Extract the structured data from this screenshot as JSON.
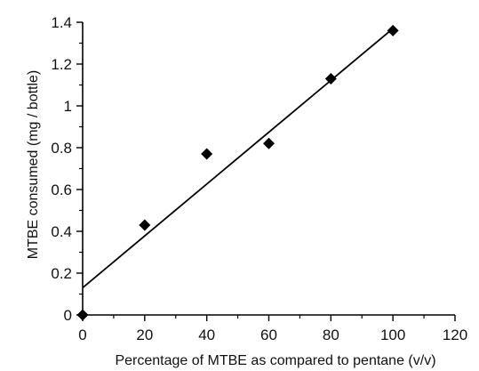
{
  "chart_data": {
    "type": "scatter",
    "xlabel": "Percentage of MTBE as compared to pentane (v/v)",
    "ylabel": "MTBE consumed (mg / bottle)",
    "xlim": [
      0,
      120
    ],
    "ylim": [
      0,
      1.4
    ],
    "x_ticks": [
      0,
      20,
      40,
      60,
      80,
      100,
      120
    ],
    "y_ticks": [
      0,
      0.2,
      0.4,
      0.6,
      0.8,
      1,
      1.2,
      1.4
    ],
    "y_tick_labels": [
      "0",
      "0.2",
      "0.4",
      "0.6",
      "0.8",
      "1",
      "1.2",
      "1.4"
    ],
    "grid": false,
    "legend": "none",
    "marker": "diamond",
    "points": [
      {
        "x": 0,
        "y": 0
      },
      {
        "x": 20,
        "y": 0.43
      },
      {
        "x": 40,
        "y": 0.77
      },
      {
        "x": 60,
        "y": 0.82
      },
      {
        "x": 80,
        "y": 1.13
      },
      {
        "x": 100,
        "y": 1.36
      }
    ],
    "fit_line": {
      "x": [
        0,
        100
      ],
      "y": [
        0.13,
        1.37
      ]
    },
    "colors": {
      "marks": "#000000"
    }
  }
}
